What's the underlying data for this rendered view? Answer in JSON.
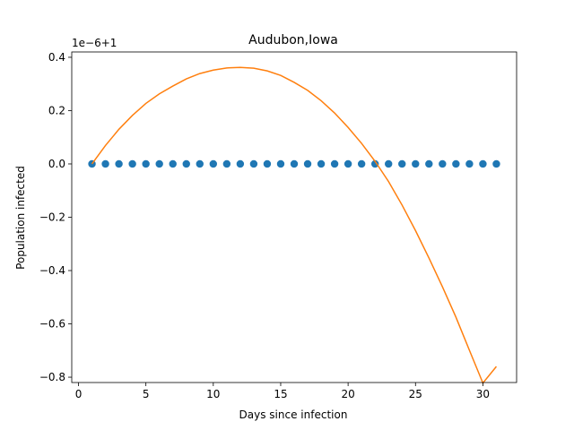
{
  "chart_data": {
    "type": "scatter+line",
    "title": "Audubon,Iowa",
    "xlabel": "Days since infection",
    "ylabel": "Population infected",
    "offset_label": "1e−6+1",
    "xlim": [
      -0.5,
      32.5
    ],
    "ylim": [
      -0.82,
      0.42
    ],
    "xticks": [
      0,
      5,
      10,
      15,
      20,
      25,
      30
    ],
    "xtick_labels": [
      "0",
      "5",
      "10",
      "15",
      "20",
      "25",
      "30"
    ],
    "yticks": [
      -0.8,
      -0.6,
      -0.4,
      -0.2,
      0.0,
      0.2,
      0.4
    ],
    "ytick_labels": [
      "−0.8",
      "−0.6",
      "−0.4",
      "−0.2",
      "0.0",
      "0.2",
      "0.4"
    ],
    "grid": false,
    "series": [
      {
        "kind": "scatter",
        "color": "#1f77b4",
        "x": [
          1,
          2,
          3,
          4,
          5,
          6,
          7,
          8,
          9,
          10,
          11,
          12,
          13,
          14,
          15,
          16,
          17,
          18,
          19,
          20,
          21,
          22,
          23,
          24,
          25,
          26,
          27,
          28,
          29,
          30,
          31
        ],
        "y": [
          0,
          0,
          0,
          0,
          0,
          0,
          0,
          0,
          0,
          0,
          0,
          0,
          0,
          0,
          0,
          0,
          0,
          0,
          0,
          0,
          0,
          0,
          0,
          0,
          0,
          0,
          0,
          0,
          0,
          0,
          0
        ]
      },
      {
        "kind": "line",
        "color": "#ff7f0e",
        "x": [
          1,
          2,
          3,
          4,
          5,
          6,
          7,
          8,
          9,
          10,
          11,
          12,
          13,
          14,
          15,
          16,
          17,
          18,
          19,
          20,
          21,
          22,
          23,
          24,
          25,
          26,
          27,
          28,
          29,
          30,
          31
        ],
        "y": [
          0.0,
          0.069,
          0.13,
          0.182,
          0.227,
          0.263,
          0.292,
          0.319,
          0.339,
          0.352,
          0.36,
          0.362,
          0.359,
          0.349,
          0.332,
          0.306,
          0.276,
          0.237,
          0.191,
          0.137,
          0.077,
          0.01,
          -0.066,
          -0.154,
          -0.25,
          -0.353,
          -0.461,
          -0.575,
          -0.699,
          -0.822,
          -0.76
        ]
      }
    ]
  }
}
